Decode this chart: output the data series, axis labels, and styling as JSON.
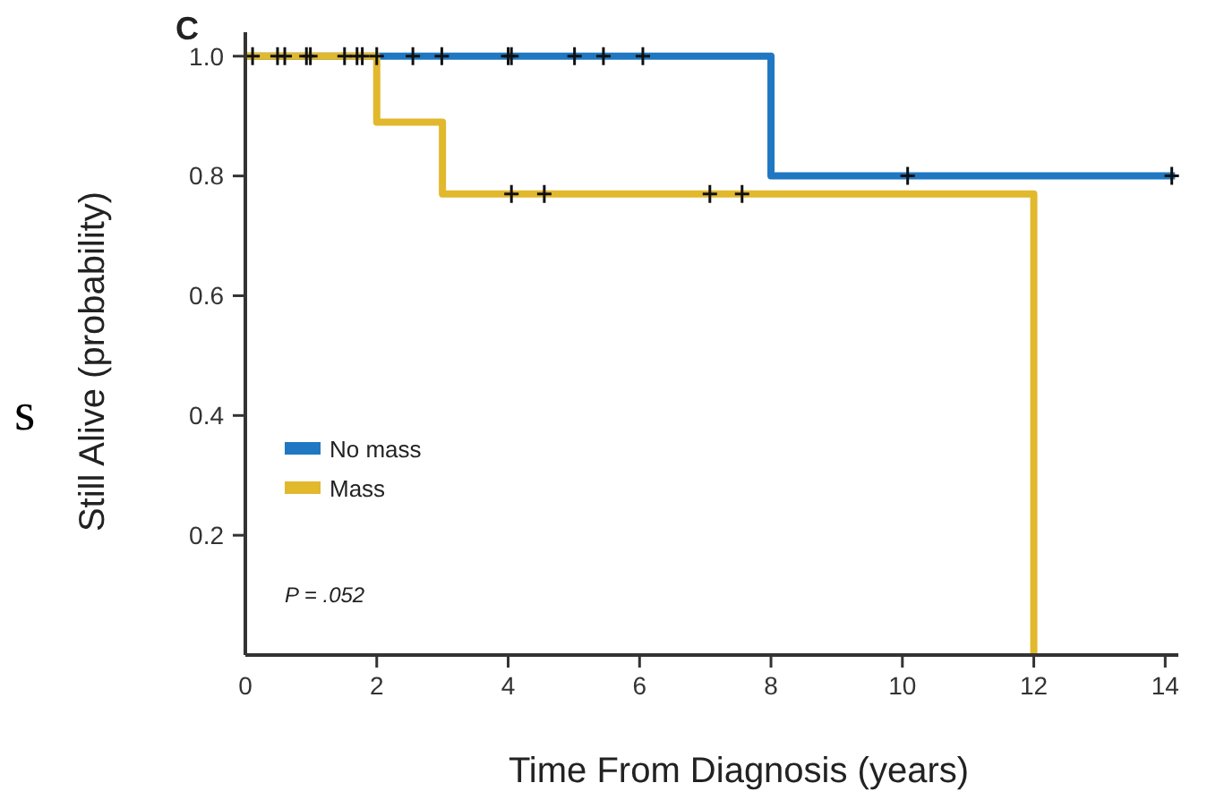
{
  "chart_data": {
    "type": "step",
    "title": "C",
    "xlabel": "Time From Diagnosis (years)",
    "ylabel": "Still Alive (probability)",
    "xlim": [
      0,
      14.2
    ],
    "xticks": [
      0,
      2,
      4,
      6,
      8,
      10,
      12,
      14
    ],
    "ylim": [
      0,
      1.04
    ],
    "yticks": [
      0.2,
      0.4,
      0.6,
      0.8,
      {
        "value": 1,
        "label": "1.0"
      }
    ],
    "series": [
      {
        "name": "No mass",
        "color": "#1f78c1",
        "x": [
          0,
          8,
          14.15
        ],
        "values": [
          1,
          0.8,
          0.8
        ]
      },
      {
        "name": "Mass",
        "color": "#e2b82c",
        "x": [
          0,
          2,
          3,
          12
        ],
        "values": [
          1,
          0.89,
          0.77,
          0
        ]
      },
      {
        "type": "scatter",
        "marker": "cross",
        "color": "#111111",
        "x": [
          0.11,
          0.49,
          0.6,
          0.93,
          0.99,
          1.51,
          1.7,
          1.78,
          2.0,
          2.55,
          2.99,
          4.0,
          4.05,
          5.01,
          5.45,
          6.05,
          10.08,
          14.1
        ],
        "values": [
          1,
          1,
          1,
          1,
          1,
          1,
          1,
          1,
          1,
          1,
          1,
          1,
          1,
          1,
          1,
          1,
          0.8,
          0.8
        ]
      },
      {
        "type": "scatter",
        "marker": "cross",
        "color": "#111111",
        "x": [
          4.05,
          4.55,
          7.07,
          7.56
        ],
        "values": [
          0.77,
          0.77,
          0.77,
          0.77
        ]
      }
    ],
    "legend": "bottom left",
    "annotations": [
      "P = .052",
      "s"
    ]
  }
}
